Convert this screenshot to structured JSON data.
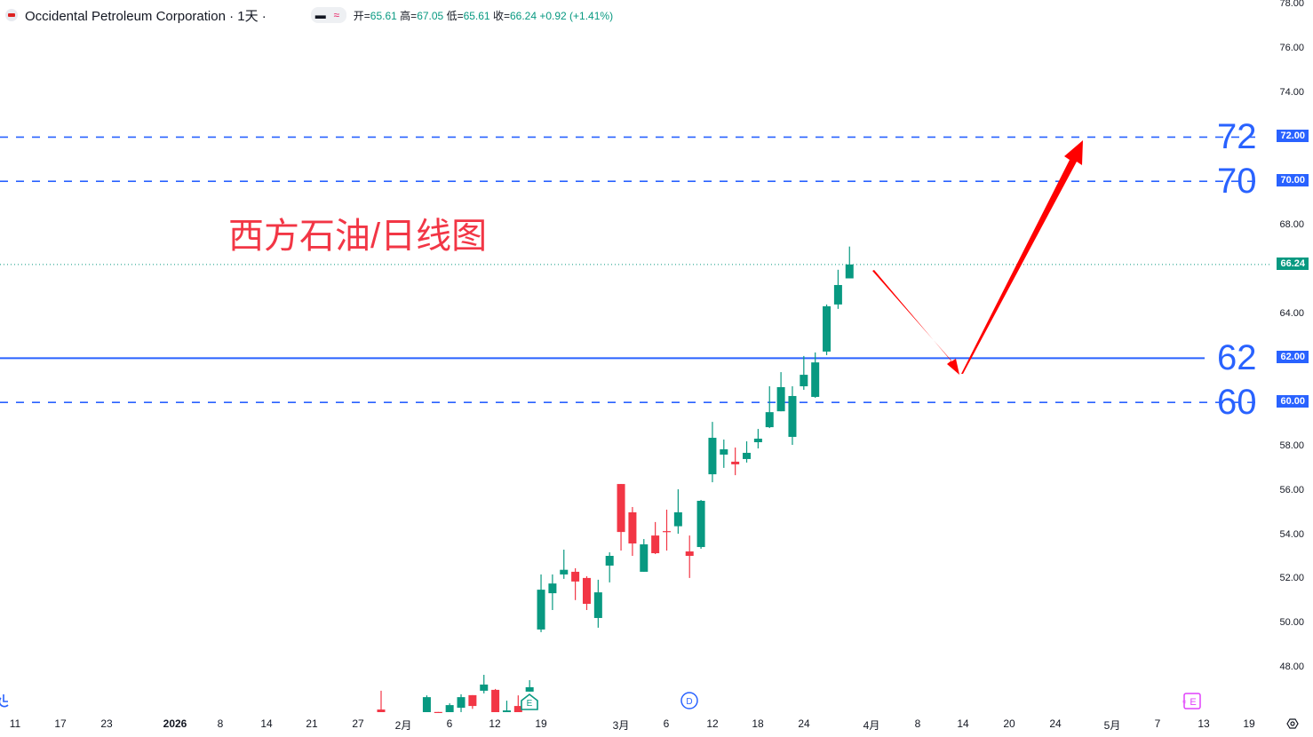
{
  "legend": {
    "symbol": "Occidental Petroleum Corporation · 1天 ·",
    "open_label": "开=",
    "open": "65.61",
    "high_label": "高=",
    "high": "67.05",
    "low_label": "低=",
    "low": "65.61",
    "close_label": "收=",
    "close": "66.24",
    "change": "+0.92 (+1.41%)"
  },
  "annotation_title": "西方石油/日线图",
  "levels": [
    {
      "price": 72,
      "label": "72",
      "badge": "72.00",
      "style": "dashed"
    },
    {
      "price": 70,
      "label": "70",
      "badge": "70.00",
      "style": "dashed"
    },
    {
      "price": 62,
      "label": "62",
      "badge": "62.00",
      "style": "solid"
    },
    {
      "price": 60,
      "label": "60",
      "badge": "60.00",
      "style": "dashed"
    }
  ],
  "last_price_badge": "66.24",
  "colors": {
    "up": "#089981",
    "down": "#f23645",
    "level": "#2962ff",
    "arrow": "#ff0000",
    "title": "#f23645"
  },
  "price_axis": [
    "78.00",
    "76.00",
    "74.00",
    "68.00",
    "64.00",
    "58.00",
    "56.00",
    "54.00",
    "52.00",
    "50.00",
    "48.00"
  ],
  "time_axis": [
    "11",
    "17",
    "23",
    "2026",
    "8",
    "14",
    "21",
    "27",
    "2月",
    "6",
    "12",
    "19",
    "3月",
    "6",
    "12",
    "18",
    "24",
    "4月",
    "8",
    "14",
    "20",
    "24",
    "5月",
    "7",
    "13",
    "19"
  ],
  "markers": {
    "dividend": "D",
    "earnings": "E",
    "earnings_upcoming": "E"
  },
  "chart_data": {
    "type": "candlestick",
    "ylim": [
      46,
      78
    ],
    "candles": [
      {
        "date": "2026-01-29",
        "o": 46.11,
        "h": 46.96,
        "l": 45.9,
        "c": 45.95
      },
      {
        "date": "2026-02-04",
        "o": 45.9,
        "h": 46.75,
        "l": 45.9,
        "c": 46.67
      },
      {
        "date": "2026-02-05",
        "o": 46.0,
        "h": 46.0,
        "l": 45.9,
        "c": 45.95
      },
      {
        "date": "2026-02-06",
        "o": 45.95,
        "h": 46.39,
        "l": 45.9,
        "c": 46.31
      },
      {
        "date": "2026-02-09",
        "o": 46.19,
        "h": 46.8,
        "l": 45.9,
        "c": 46.67
      },
      {
        "date": "2026-02-10",
        "o": 46.76,
        "h": 46.76,
        "l": 46.14,
        "c": 46.27
      },
      {
        "date": "2026-02-11",
        "o": 46.96,
        "h": 47.68,
        "l": 46.84,
        "c": 47.24
      },
      {
        "date": "2026-02-12",
        "o": 47.0,
        "h": 47.04,
        "l": 45.9,
        "c": 45.95
      },
      {
        "date": "2026-02-13",
        "o": 45.95,
        "h": 46.51,
        "l": 45.9,
        "c": 46.07
      },
      {
        "date": "2026-02-17",
        "o": 46.27,
        "h": 46.75,
        "l": 45.9,
        "c": 45.95
      },
      {
        "date": "2026-02-18",
        "o": 46.92,
        "h": 47.44,
        "l": 46.92,
        "c": 47.12
      },
      {
        "date": "2026-02-19",
        "o": 49.73,
        "h": 52.22,
        "l": 49.61,
        "c": 51.53
      },
      {
        "date": "2026-02-20",
        "o": 51.37,
        "h": 52.22,
        "l": 50.61,
        "c": 51.81
      },
      {
        "date": "2026-02-23",
        "o": 52.22,
        "h": 53.34,
        "l": 52.02,
        "c": 52.43
      },
      {
        "date": "2026-02-24",
        "o": 52.34,
        "h": 52.5,
        "l": 51.06,
        "c": 51.9
      },
      {
        "date": "2026-02-25",
        "o": 52.06,
        "h": 52.14,
        "l": 50.61,
        "c": 50.89
      },
      {
        "date": "2026-02-26",
        "o": 50.25,
        "h": 51.98,
        "l": 49.81,
        "c": 51.41
      },
      {
        "date": "2026-02-27",
        "o": 52.62,
        "h": 53.22,
        "l": 51.86,
        "c": 53.06
      },
      {
        "date": "2026-03-02",
        "o": 56.31,
        "h": 56.31,
        "l": 53.3,
        "c": 54.14
      },
      {
        "date": "2026-03-03",
        "o": 55.03,
        "h": 55.27,
        "l": 53.06,
        "c": 53.62
      },
      {
        "date": "2026-03-04",
        "o": 52.34,
        "h": 53.82,
        "l": 52.34,
        "c": 53.58
      },
      {
        "date": "2026-03-05",
        "o": 53.98,
        "h": 54.59,
        "l": 53.14,
        "c": 53.18
      },
      {
        "date": "2026-03-06",
        "o": 54.18,
        "h": 55.15,
        "l": 53.3,
        "c": 54.14
      },
      {
        "date": "2026-03-09",
        "o": 54.4,
        "h": 56.07,
        "l": 54.06,
        "c": 55.03
      },
      {
        "date": "2026-03-10",
        "o": 53.26,
        "h": 53.98,
        "l": 52.06,
        "c": 53.06
      },
      {
        "date": "2026-03-11",
        "o": 53.46,
        "h": 55.59,
        "l": 53.38,
        "c": 55.55
      },
      {
        "date": "2026-03-12",
        "o": 56.75,
        "h": 59.12,
        "l": 56.39,
        "c": 58.4
      },
      {
        "date": "2026-03-13",
        "o": 57.64,
        "h": 58.32,
        "l": 57.04,
        "c": 57.88
      },
      {
        "date": "2026-03-16",
        "o": 57.32,
        "h": 57.96,
        "l": 56.71,
        "c": 57.2
      },
      {
        "date": "2026-03-17",
        "o": 57.44,
        "h": 58.24,
        "l": 57.28,
        "c": 57.72
      },
      {
        "date": "2026-03-18",
        "o": 58.2,
        "h": 58.8,
        "l": 57.92,
        "c": 58.36
      },
      {
        "date": "2026-03-19",
        "o": 58.88,
        "h": 60.73,
        "l": 58.84,
        "c": 59.56
      },
      {
        "date": "2026-03-20",
        "o": 59.6,
        "h": 61.37,
        "l": 59.6,
        "c": 60.69
      },
      {
        "date": "2026-03-23",
        "o": 58.44,
        "h": 60.73,
        "l": 58.08,
        "c": 60.29
      },
      {
        "date": "2026-03-24",
        "o": 60.73,
        "h": 62.1,
        "l": 60.57,
        "c": 61.25
      },
      {
        "date": "2026-03-25",
        "o": 60.25,
        "h": 62.26,
        "l": 60.21,
        "c": 61.81
      },
      {
        "date": "2026-03-26",
        "o": 62.3,
        "h": 64.43,
        "l": 62.14,
        "c": 64.35
      },
      {
        "date": "2026-03-27",
        "o": 64.43,
        "h": 66.0,
        "l": 64.23,
        "c": 65.31
      },
      {
        "date": "2026-03-30",
        "o": 65.61,
        "h": 67.05,
        "l": 65.61,
        "c": 66.24
      }
    ],
    "projection": [
      {
        "price": 66.24
      },
      {
        "price": 61.3
      },
      {
        "price": 72
      }
    ]
  }
}
